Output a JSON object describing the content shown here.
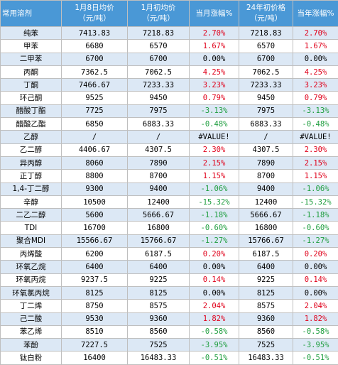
{
  "headers": [
    "常用溶剂",
    "1月8日均价\n（元/吨）",
    "1月初均价\n（元/吨）",
    "当月涨幅%",
    "24年初价格\n（元/吨）",
    "当年涨幅%"
  ],
  "colors": {
    "header_bg": "#4a98d6",
    "row_alt": "#dce8f5",
    "up": "#e0001a",
    "down": "#1f9e3f"
  },
  "rows": [
    {
      "name": "纯苯",
      "p1": "7413.83",
      "p2": "7218.83",
      "mchg": "2.70%",
      "p3": "7218.83",
      "ychg": "2.70%",
      "dir": "pos"
    },
    {
      "name": "甲苯",
      "p1": "6680",
      "p2": "6570",
      "mchg": "1.67%",
      "p3": "6570",
      "ychg": "1.67%",
      "dir": "pos"
    },
    {
      "name": "二甲苯",
      "p1": "6700",
      "p2": "6700",
      "mchg": "0.00%",
      "p3": "6700",
      "ychg": "0.00%",
      "dir": "zero"
    },
    {
      "name": "丙酮",
      "p1": "7362.5",
      "p2": "7062.5",
      "mchg": "4.25%",
      "p3": "7062.5",
      "ychg": "4.25%",
      "dir": "pos"
    },
    {
      "name": "丁酮",
      "p1": "7466.67",
      "p2": "7233.33",
      "mchg": "3.23%",
      "p3": "7233.33",
      "ychg": "3.23%",
      "dir": "pos"
    },
    {
      "name": "环己酮",
      "p1": "9525",
      "p2": "9450",
      "mchg": "0.79%",
      "p3": "9450",
      "ychg": "0.79%",
      "dir": "pos"
    },
    {
      "name": "醋酸丁酯",
      "p1": "7725",
      "p2": "7975",
      "mchg": "-3.13%",
      "p3": "7975",
      "ychg": "-3.13%",
      "dir": "neg"
    },
    {
      "name": "醋酸乙酯",
      "p1": "6850",
      "p2": "6883.33",
      "mchg": "-0.48%",
      "p3": "6883.33",
      "ychg": "-0.48%",
      "dir": "neg"
    },
    {
      "name": "乙醇",
      "p1": "/",
      "p2": "/",
      "mchg": "#VALUE!",
      "p3": "/",
      "ychg": "#VALUE!",
      "dir": "zero"
    },
    {
      "name": "乙二醇",
      "p1": "4406.67",
      "p2": "4307.5",
      "mchg": "2.30%",
      "p3": "4307.5",
      "ychg": "2.30%",
      "dir": "pos"
    },
    {
      "name": "异丙醇",
      "p1": "8060",
      "p2": "7890",
      "mchg": "2.15%",
      "p3": "7890",
      "ychg": "2.15%",
      "dir": "pos"
    },
    {
      "name": "正丁醇",
      "p1": "8800",
      "p2": "8700",
      "mchg": "1.15%",
      "p3": "8700",
      "ychg": "1.15%",
      "dir": "pos"
    },
    {
      "name": "1,4-丁二醇",
      "p1": "9300",
      "p2": "9400",
      "mchg": "-1.06%",
      "p3": "9400",
      "ychg": "-1.06%",
      "dir": "neg"
    },
    {
      "name": "辛醇",
      "p1": "10500",
      "p2": "12400",
      "mchg": "-15.32%",
      "p3": "12400",
      "ychg": "-15.32%",
      "dir": "neg"
    },
    {
      "name": "二乙二醇",
      "p1": "5600",
      "p2": "5666.67",
      "mchg": "-1.18%",
      "p3": "5666.67",
      "ychg": "-1.18%",
      "dir": "neg"
    },
    {
      "name": "TDI",
      "p1": "16700",
      "p2": "16800",
      "mchg": "-0.60%",
      "p3": "16800",
      "ychg": "-0.60%",
      "dir": "neg"
    },
    {
      "name": "聚合MDI",
      "p1": "15566.67",
      "p2": "15766.67",
      "mchg": "-1.27%",
      "p3": "15766.67",
      "ychg": "-1.27%",
      "dir": "neg"
    },
    {
      "name": "丙烯酸",
      "p1": "6200",
      "p2": "6187.5",
      "mchg": "0.20%",
      "p3": "6187.5",
      "ychg": "0.20%",
      "dir": "pos"
    },
    {
      "name": "环氧乙烷",
      "p1": "6400",
      "p2": "6400",
      "mchg": "0.00%",
      "p3": "6400",
      "ychg": "0.00%",
      "dir": "zero"
    },
    {
      "name": "环氧丙烷",
      "p1": "9237.5",
      "p2": "9225",
      "mchg": "0.14%",
      "p3": "9225",
      "ychg": "0.14%",
      "dir": "pos"
    },
    {
      "name": "环氧氯丙烷",
      "p1": "8125",
      "p2": "8125",
      "mchg": "0.00%",
      "p3": "8125",
      "ychg": "0.00%",
      "dir": "zero"
    },
    {
      "name": "丁二烯",
      "p1": "8750",
      "p2": "8575",
      "mchg": "2.04%",
      "p3": "8575",
      "ychg": "2.04%",
      "dir": "pos"
    },
    {
      "name": "己二酸",
      "p1": "9530",
      "p2": "9360",
      "mchg": "1.82%",
      "p3": "9360",
      "ychg": "1.82%",
      "dir": "pos"
    },
    {
      "name": "苯乙烯",
      "p1": "8510",
      "p2": "8560",
      "mchg": "-0.58%",
      "p3": "8560",
      "ychg": "-0.58%",
      "dir": "neg"
    },
    {
      "name": "苯酚",
      "p1": "7227.5",
      "p2": "7525",
      "mchg": "-3.95%",
      "p3": "7525",
      "ychg": "-3.95%",
      "dir": "neg"
    },
    {
      "name": "钛白粉",
      "p1": "16400",
      "p2": "16483.33",
      "mchg": "-0.51%",
      "p3": "16483.33",
      "ychg": "-0.51%",
      "dir": "neg"
    }
  ]
}
